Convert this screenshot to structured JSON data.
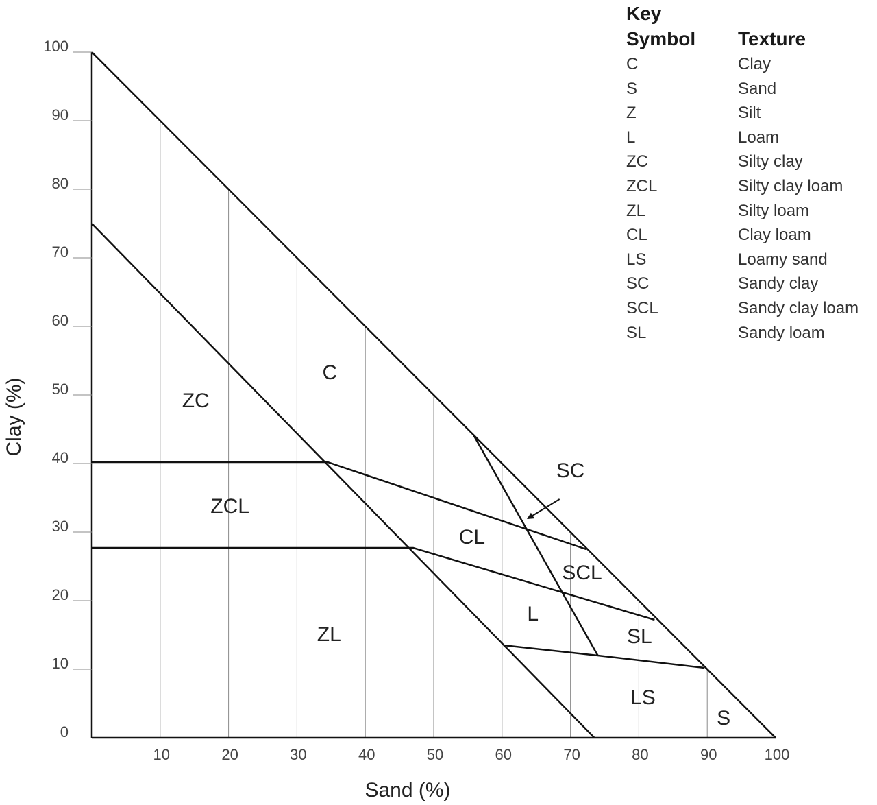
{
  "key": {
    "title": "Key",
    "col_symbol": "Symbol",
    "col_texture": "Texture",
    "rows": [
      {
        "symbol": "C",
        "texture": "Clay"
      },
      {
        "symbol": "S",
        "texture": "Sand"
      },
      {
        "symbol": "Z",
        "texture": "Silt"
      },
      {
        "symbol": "L",
        "texture": "Loam"
      },
      {
        "symbol": "ZC",
        "texture": "Silty clay"
      },
      {
        "symbol": "ZCL",
        "texture": "Silty clay loam"
      },
      {
        "symbol": "ZL",
        "texture": "Silty loam"
      },
      {
        "symbol": "CL",
        "texture": "Clay loam"
      },
      {
        "symbol": "LS",
        "texture": "Loamy sand"
      },
      {
        "symbol": "SC",
        "texture": "Sandy clay"
      },
      {
        "symbol": "SCL",
        "texture": "Sandy clay loam"
      },
      {
        "symbol": "SL",
        "texture": "Sandy loam"
      }
    ]
  },
  "diagram": {
    "xlabel": "Sand (%)",
    "ylabel": "Clay (%)",
    "xlim": [
      0,
      100
    ],
    "ylim": [
      0,
      100
    ],
    "x_ticks": [
      10,
      20,
      30,
      40,
      50,
      60,
      70,
      80,
      90,
      100
    ],
    "y_ticks": [
      0,
      10,
      20,
      30,
      40,
      50,
      60,
      70,
      80,
      90,
      100
    ],
    "boundaries": [
      {
        "name": "outer-hypotenuse",
        "points": [
          [
            0,
            100
          ],
          [
            100,
            0
          ]
        ]
      },
      {
        "name": "silt-limit",
        "points": [
          [
            0,
            75
          ],
          [
            73.5,
            0
          ]
        ]
      },
      {
        "name": "zc-zcl-cl-boundary",
        "points": [
          [
            0,
            40.2
          ],
          [
            34.5,
            40.2
          ],
          [
            72.3,
            27.5
          ]
        ]
      },
      {
        "name": "zcl-zl-l-boundary",
        "points": [
          [
            0,
            27.7
          ],
          [
            47,
            27.7
          ],
          [
            82.3,
            17.2
          ]
        ]
      },
      {
        "name": "sc-scl-sl-boundary",
        "points": [
          [
            55.8,
            44.2
          ],
          [
            74,
            12
          ]
        ]
      },
      {
        "name": "ls-boundary",
        "points": [
          [
            60.2,
            13.5
          ],
          [
            74,
            12
          ],
          [
            89.6,
            10.2
          ]
        ]
      }
    ],
    "regions": [
      {
        "label": "C",
        "sand": 34.8,
        "clay": 53.3
      },
      {
        "label": "ZC",
        "sand": 15.2,
        "clay": 49.2
      },
      {
        "label": "ZCL",
        "sand": 20.2,
        "clay": 33.8
      },
      {
        "label": "CL",
        "sand": 55.6,
        "clay": 29.3
      },
      {
        "label": "SC",
        "sand": 70,
        "clay": 39
      },
      {
        "label": "SCL",
        "sand": 71.7,
        "clay": 24.1
      },
      {
        "label": "L",
        "sand": 64.5,
        "clay": 18.1
      },
      {
        "label": "SL",
        "sand": 80.1,
        "clay": 14.8
      },
      {
        "label": "ZL",
        "sand": 34.7,
        "clay": 15.1
      },
      {
        "label": "LS",
        "sand": 80.6,
        "clay": 5.9
      },
      {
        "label": "S",
        "sand": 92.4,
        "clay": 2.9
      }
    ],
    "sc_arrow": {
      "from": [
        68.4,
        34.8
      ],
      "to": [
        63.8,
        32
      ]
    },
    "colors": {
      "line": "#111111",
      "grid": "#8a8a8a",
      "text": "#222222"
    }
  }
}
